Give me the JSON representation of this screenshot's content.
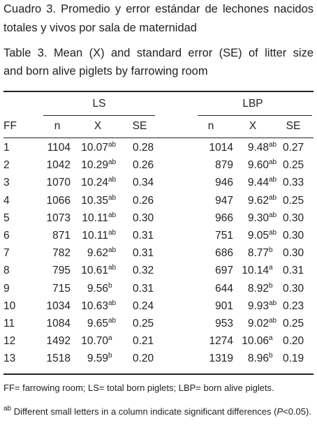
{
  "caption_es": [
    "Cuadro 3. Promedio y error estándar de lechones nacidos",
    "totales y vivos por sala de maternidad"
  ],
  "caption_en": [
    "Table 3. Mean (X) and standard error (SE) of litter size",
    "and born alive piglets by farrowing room"
  ],
  "table": {
    "groups": [
      "LS",
      "LBP"
    ],
    "columns": [
      "FF",
      "n",
      "X",
      "SE",
      "n",
      "X",
      "SE"
    ],
    "rows": [
      [
        "1",
        "1104",
        "10.07",
        "ab",
        "0.28",
        "1014",
        "9.48",
        "ab",
        "0.27"
      ],
      [
        "2",
        "1042",
        "10.29",
        "ab",
        "0.26",
        "879",
        "9.60",
        "ab",
        "0.25"
      ],
      [
        "3",
        "1070",
        "10.24",
        "ab",
        "0.34",
        "946",
        "9.44",
        "ab",
        "0.33"
      ],
      [
        "4",
        "1066",
        "10.35",
        "ab",
        "0.26",
        "947",
        "9.62",
        "ab",
        "0.25"
      ],
      [
        "5",
        "1073",
        "10.11",
        "ab",
        "0.30",
        "966",
        "9.30",
        "ab",
        "0.30"
      ],
      [
        "6",
        "871",
        "10.11",
        "ab",
        "0.31",
        "751",
        "9.05",
        "ab",
        "0.30"
      ],
      [
        "7",
        "782",
        "9.62",
        "ab",
        "0.31",
        "686",
        "8.77",
        "b",
        "0.30"
      ],
      [
        "8",
        "795",
        "10.61",
        "ab",
        "0.32",
        "697",
        "10.14",
        "a",
        "0.31"
      ],
      [
        "9",
        "715",
        "9.56",
        "b",
        "0.31",
        "644",
        "8.92",
        "b",
        "0.30"
      ],
      [
        "10",
        "1034",
        "10.63",
        "ab",
        "0.24",
        "901",
        "9.93",
        "ab",
        "0.23"
      ],
      [
        "11",
        "1084",
        "9.65",
        "ab",
        "0.25",
        "953",
        "9.02",
        "ab",
        "0.25"
      ],
      [
        "12",
        "1492",
        "10.70",
        "a",
        "0.21",
        "1274",
        "10.06",
        "a",
        "0.20"
      ],
      [
        "13",
        "1518",
        "9.59",
        "b",
        "0.20",
        "1319",
        "8.96",
        "b",
        "0.19"
      ]
    ]
  },
  "notes": [
    "FF= farrowing room; LS= total born piglets; LBP= born alive piglets.",
    {
      "sup": "ab",
      "text": "Different small letters in a column indicate significant differences (",
      "italic": "P",
      "rest": "<0.05)."
    }
  ]
}
